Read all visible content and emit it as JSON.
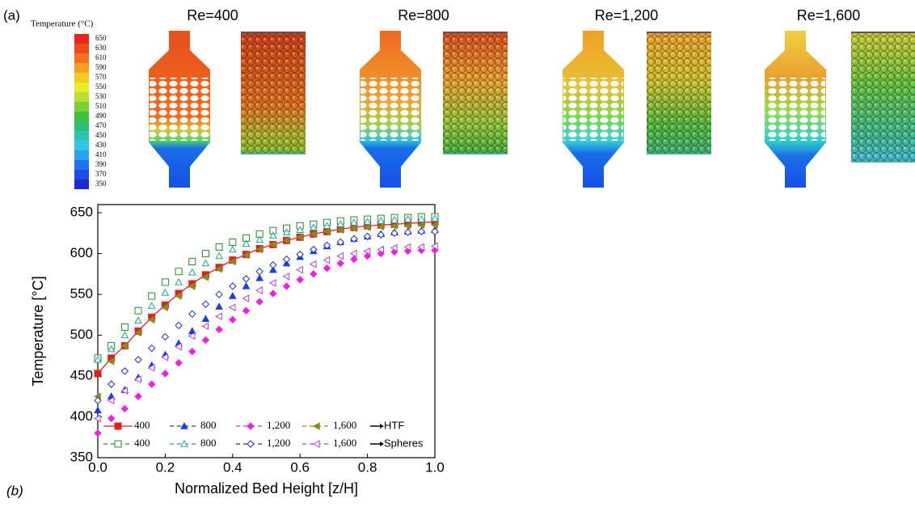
{
  "panel_a": {
    "label": "(a)",
    "colorbar": {
      "title": "Temperature (°C)",
      "ticks": [
        650,
        630,
        610,
        590,
        570,
        550,
        530,
        510,
        490,
        470,
        450,
        430,
        410,
        390,
        370,
        350
      ]
    },
    "cases": [
      "Re=400",
      "Re=800",
      "Re=1,200",
      "Re=1,600"
    ]
  },
  "panel_b_label": "(b)",
  "chart_data": {
    "type": "scatter",
    "xlabel": "Normalized Bed Height [z/H]",
    "ylabel": "Temperature [°C]",
    "xlim": [
      0,
      1
    ],
    "ylim": [
      350,
      660
    ],
    "xticks": [
      {
        "value": 0,
        "label": "0.0"
      },
      0.2,
      0.4,
      0.6,
      0.8,
      {
        "value": 1,
        "label": "1.0"
      }
    ],
    "yticks": [
      350,
      400,
      450,
      500,
      550,
      600,
      650
    ],
    "legend_groups": [
      "HTF",
      "Spheres"
    ],
    "x": [
      0,
      0.04,
      0.08,
      0.12,
      0.16,
      0.2,
      0.24,
      0.28,
      0.32,
      0.36,
      0.4,
      0.44,
      0.48,
      0.52,
      0.56,
      0.6,
      0.64,
      0.68,
      0.72,
      0.76,
      0.8,
      0.84,
      0.88,
      0.92,
      0.96,
      1.0
    ],
    "series": [
      {
        "name": "400",
        "group": 0,
        "color": "#e02020",
        "marker": "square",
        "filled": true,
        "line": true,
        "values": [
          453,
          472,
          487,
          505,
          522,
          537,
          551,
          563,
          574,
          583,
          592,
          599,
          606,
          611,
          616,
          620,
          624,
          627,
          630,
          632,
          634,
          635,
          636,
          637,
          638,
          639
        ]
      },
      {
        "name": "800",
        "group": 0,
        "color": "#1a3ee0",
        "marker": "triangle",
        "filled": true,
        "line": false,
        "values": [
          408,
          425,
          433,
          448,
          463,
          476,
          490,
          505,
          520,
          535,
          548,
          560,
          570,
          580,
          588,
          596,
          603,
          609,
          614,
          618,
          621,
          624,
          626,
          627,
          628,
          629
        ]
      },
      {
        "name": "1,200",
        "group": 0,
        "color": "#f020e0",
        "marker": "diamond",
        "filled": true,
        "line": false,
        "values": [
          380,
          398,
          410,
          425,
          440,
          453,
          466,
          480,
          494,
          507,
          519,
          530,
          541,
          551,
          560,
          568,
          575,
          582,
          588,
          593,
          597,
          600,
          602,
          603,
          604,
          604
        ]
      },
      {
        "name": "1,600",
        "group": 0,
        "color": "#8a8a1a",
        "marker": "left-triangle",
        "filled": true,
        "line": false,
        "values": [
          425,
          468,
          487,
          503,
          519,
          534,
          548,
          560,
          571,
          581,
          590,
          598,
          605,
          611,
          616,
          620,
          624,
          627,
          629,
          631,
          632,
          633,
          634,
          634,
          635,
          635
        ]
      },
      {
        "name": "400",
        "group": 1,
        "color": "#2a8a2a",
        "marker": "square",
        "filled": false,
        "line": false,
        "values": [
          472,
          487,
          510,
          530,
          548,
          565,
          578,
          590,
          600,
          608,
          614,
          619,
          624,
          628,
          631,
          634,
          636,
          638,
          640,
          641,
          642,
          643,
          644,
          644,
          645,
          645
        ]
      },
      {
        "name": "800",
        "group": 1,
        "color": "#20a0a0",
        "marker": "triangle",
        "filled": false,
        "line": false,
        "values": [
          470,
          483,
          500,
          518,
          536,
          552,
          565,
          577,
          588,
          597,
          605,
          612,
          617,
          622,
          626,
          629,
          632,
          634,
          636,
          638,
          639,
          640,
          641,
          642,
          642,
          643
        ]
      },
      {
        "name": "1,200",
        "group": 1,
        "color": "#1a2ad0",
        "marker": "diamond",
        "filled": false,
        "line": false,
        "values": [
          420,
          440,
          456,
          470,
          484,
          498,
          512,
          526,
          538,
          550,
          560,
          569,
          578,
          586,
          593,
          599,
          605,
          610,
          614,
          618,
          621,
          623,
          625,
          626,
          627,
          627
        ]
      },
      {
        "name": "1,600",
        "group": 1,
        "color": "#b040e0",
        "marker": "left-triangle",
        "filled": false,
        "line": false,
        "values": [
          398,
          420,
          432,
          446,
          460,
          473,
          486,
          499,
          511,
          523,
          534,
          545,
          555,
          564,
          572,
          580,
          587,
          592,
          597,
          600,
          603,
          605,
          607,
          608,
          608,
          609
        ]
      }
    ]
  }
}
